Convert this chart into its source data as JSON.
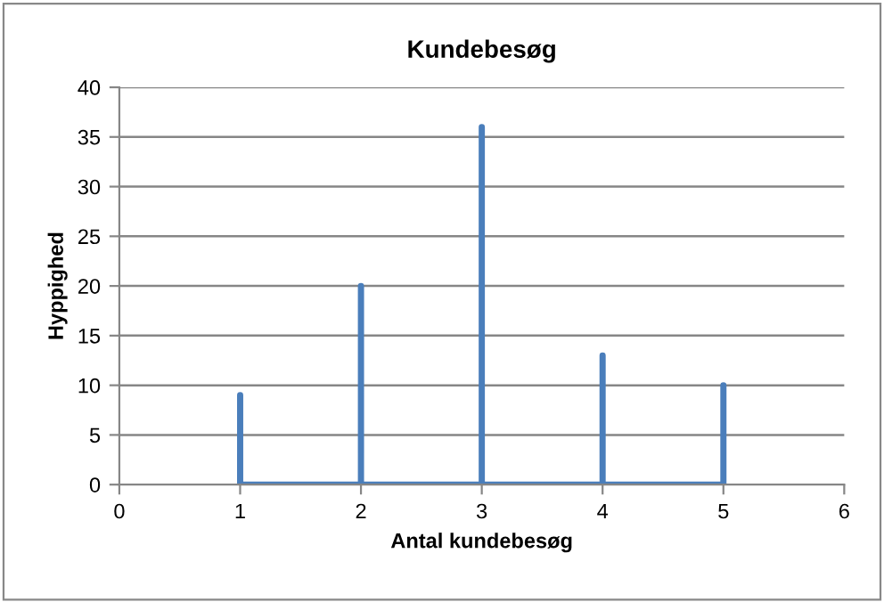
{
  "chart_data": {
    "type": "line",
    "title": "Kundebesøg",
    "xlabel": "Antal kundebesøg",
    "ylabel": "Hyppighed",
    "series": [
      {
        "color": "#4a7ebb",
        "x": [
          1,
          1,
          1,
          2,
          2,
          2,
          3,
          3,
          3,
          4,
          4,
          4,
          5,
          5,
          5
        ],
        "values": [
          0,
          9,
          0,
          0,
          20,
          0,
          0,
          36,
          0,
          0,
          13,
          0,
          0,
          10,
          0
        ]
      }
    ],
    "xlim": [
      0,
      6
    ],
    "xticks": [
      0,
      1,
      2,
      3,
      4,
      5,
      6
    ],
    "ylim": [
      0,
      40
    ],
    "yticks": [
      0,
      5,
      10,
      15,
      20,
      25,
      30,
      35,
      40
    ],
    "grid": "y",
    "marker": "none",
    "line_style": "solid",
    "legend": false
  }
}
